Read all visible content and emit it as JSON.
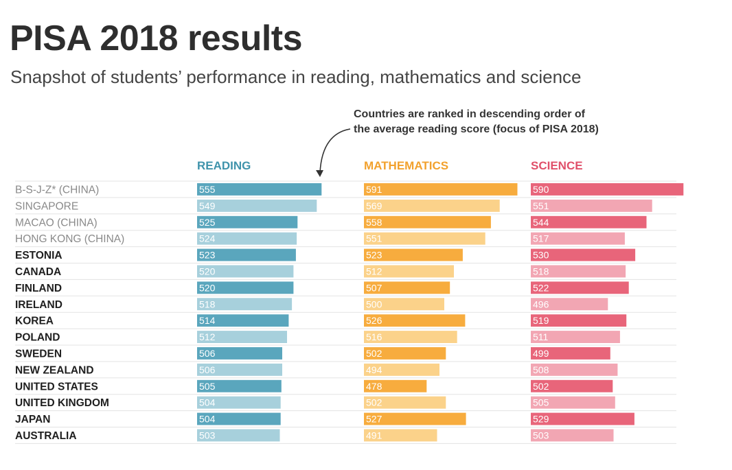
{
  "title": "PISA 2018 results",
  "subtitle": "Snapshot of students’ performance in reading, mathematics and science",
  "note": {
    "line1": "Countries are ranked in descending order of",
    "line2": "the average reading score (focus of PISA 2018)"
  },
  "colors": {
    "reading_dark": "#5aa6bd",
    "reading_light": "#a7d0dc",
    "math_dark": "#f7ac3e",
    "math_light": "#fbd28a",
    "science_dark": "#e8657a",
    "science_light": "#f2a6b3",
    "label_grey": "#8a8a8a",
    "label_dark": "#1e1e1e",
    "header_reading": "#3f93ab",
    "header_math": "#f2a12d",
    "header_science": "#e0506a"
  },
  "chart_data": {
    "type": "bar",
    "orientation": "horizontal",
    "categories": [
      "B-S-J-Z* (CHINA)",
      "SINGAPORE",
      "MACAO (CHINA)",
      "HONG KONG (CHINA)",
      "ESTONIA",
      "CANADA",
      "FINLAND",
      "IRELAND",
      "KOREA",
      "POLAND",
      "SWEDEN",
      "NEW ZEALAND",
      "UNITED STATES",
      "UNITED KINGDOM",
      "JAPAN",
      "AUSTRALIA"
    ],
    "series": [
      {
        "name": "READING",
        "values": [
          555,
          549,
          525,
          524,
          523,
          520,
          520,
          518,
          514,
          512,
          506,
          506,
          505,
          504,
          504,
          503
        ]
      },
      {
        "name": "MATHEMATICS",
        "values": [
          591,
          569,
          558,
          551,
          523,
          512,
          507,
          500,
          526,
          516,
          502,
          494,
          478,
          502,
          527,
          491
        ]
      },
      {
        "name": "SCIENCE",
        "values": [
          590,
          551,
          544,
          517,
          530,
          518,
          522,
          496,
          519,
          511,
          499,
          508,
          502,
          505,
          529,
          503
        ]
      }
    ],
    "grey_label_rows": 4
  }
}
